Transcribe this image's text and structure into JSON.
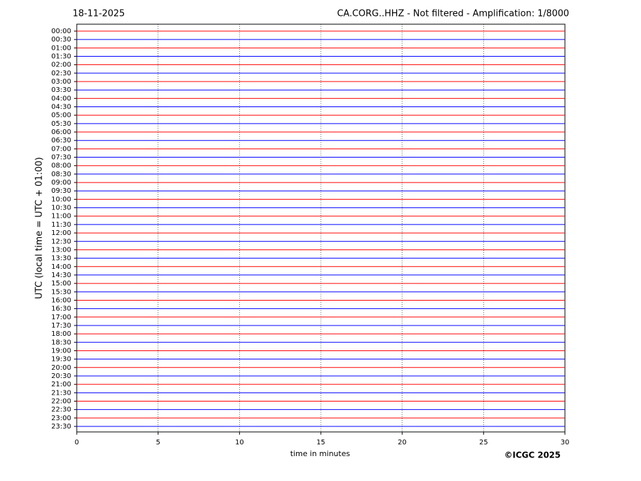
{
  "chart_data": {
    "type": "helicorder",
    "date": "18-11-2025",
    "title": "CA.CORG..HHZ - Not filtered - Amplification: 1/8000",
    "ylabel": "UTC (local time = UTC + 01:00)",
    "xlabel": "time in minutes",
    "categories": [
      "00:00",
      "00:30",
      "01:00",
      "01:30",
      "02:00",
      "02:30",
      "03:00",
      "03:30",
      "04:00",
      "04:30",
      "05:00",
      "05:30",
      "06:00",
      "06:30",
      "07:00",
      "07:30",
      "08:00",
      "08:30",
      "09:00",
      "09:30",
      "10:00",
      "10:30",
      "11:00",
      "11:30",
      "12:00",
      "12:30",
      "13:00",
      "13:30",
      "14:00",
      "14:30",
      "15:00",
      "15:30",
      "16:00",
      "16:30",
      "17:00",
      "17:30",
      "18:00",
      "18:30",
      "19:00",
      "19:30",
      "20:00",
      "20:30",
      "21:00",
      "21:30",
      "22:00",
      "22:30",
      "23:00",
      "23:30"
    ],
    "trace_colors": [
      "#ff0000",
      "#0000ff"
    ],
    "xlim": [
      0,
      30
    ],
    "xticks": [
      0,
      5,
      10,
      15,
      20,
      25,
      30
    ],
    "grid": true,
    "credit": "©ICGC 2025"
  }
}
